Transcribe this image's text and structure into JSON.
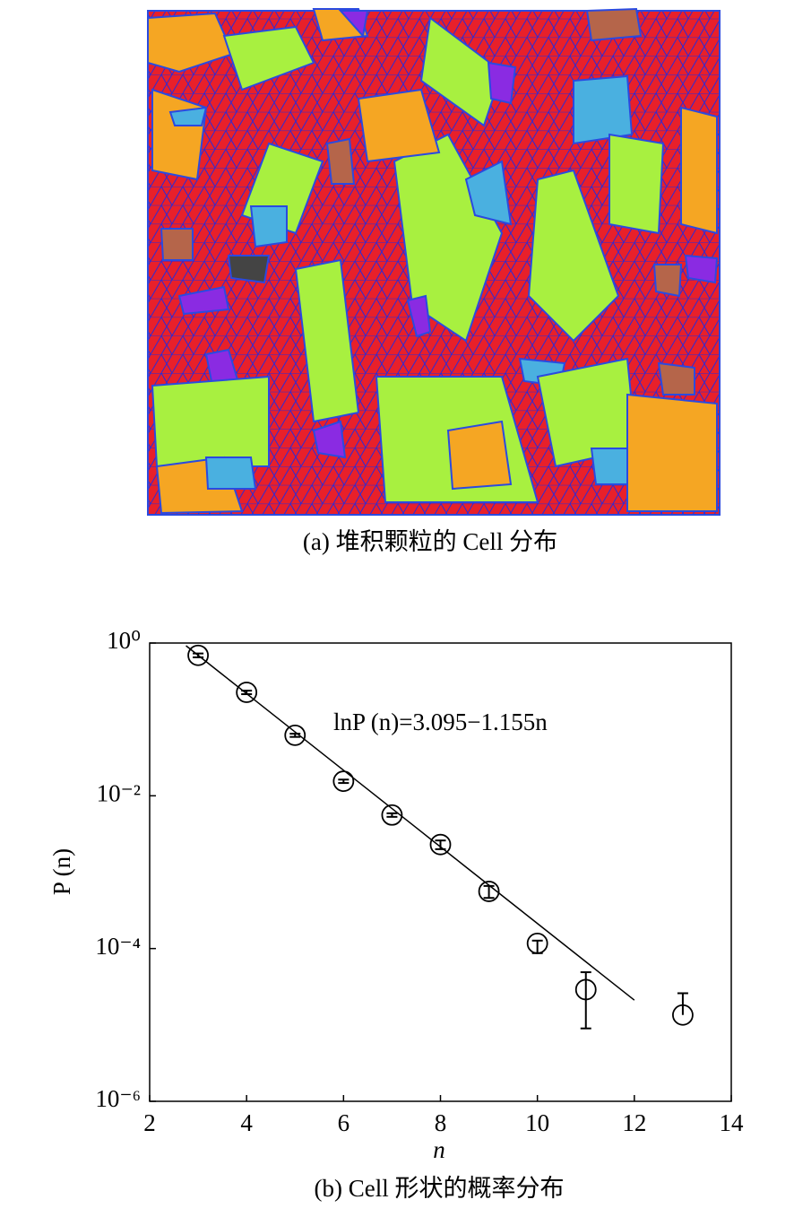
{
  "figure_a": {
    "caption": "(a) 堆积颗粒的 Cell 分布"
  },
  "chart_data": {
    "type": "scatter",
    "xlabel": "n",
    "ylabel": "P (n)",
    "caption": "(b) Cell 形状的概率分布",
    "annotation": "lnP (n)=3.095−1.155n",
    "x": [
      3,
      4,
      5,
      6,
      7,
      8,
      9,
      10,
      11,
      13
    ],
    "values": [
      0.69,
      0.226,
      0.062,
      0.0155,
      0.0056,
      0.0023,
      0.00056,
      0.000117,
      2.9e-05,
      1.35e-05
    ],
    "error_lower": [
      0.04,
      0.012,
      0.003,
      0.0008,
      0.0003,
      0.0003,
      0.0001,
      3e-05,
      2e-05,
      0
    ],
    "error_upper": [
      0.04,
      0.012,
      0.003,
      0.0008,
      0.0003,
      0.0003,
      0.0001,
      1e-05,
      2e-05,
      1.25e-05
    ],
    "fit": {
      "intercept": 3.095,
      "slope": -1.155,
      "x_range": [
        2.75,
        12
      ]
    },
    "xlim": [
      2,
      14
    ],
    "xticks": [
      2,
      4,
      6,
      8,
      10,
      12,
      14
    ],
    "ylim": [
      1e-06,
      1
    ],
    "log_y": true,
    "yticks": [
      {
        "value": 1,
        "label": "10⁰"
      },
      {
        "value": 0.01,
        "label": "10⁻²"
      },
      {
        "value": 0.0001,
        "label": "10⁻⁴"
      },
      {
        "value": 1e-06,
        "label": "10⁻⁶"
      }
    ]
  }
}
